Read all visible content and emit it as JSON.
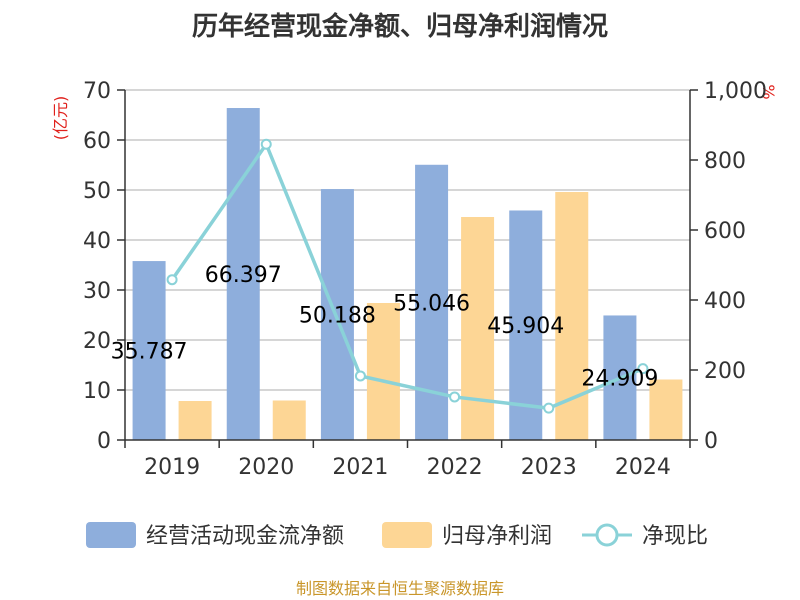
{
  "chart_data": {
    "type": "bar",
    "title": "历年经营现金净额、归母净利润情况",
    "categories": [
      "2019",
      "2020",
      "2021",
      "2022",
      "2023",
      "2024"
    ],
    "series": [
      {
        "name": "经营活动现金流净额",
        "type": "bar",
        "axis": "left",
        "color": "#8eaedc",
        "values": [
          35.787,
          66.397,
          50.188,
          55.046,
          45.904,
          24.909
        ],
        "labels": [
          "35.787",
          "66.397",
          "50.188",
          "55.046",
          "45.904",
          "24.909"
        ]
      },
      {
        "name": "归母净利润",
        "type": "bar",
        "axis": "left",
        "color": "#fdd695",
        "values": [
          7.8,
          7.9,
          27.4,
          44.6,
          49.6,
          12.1
        ]
      },
      {
        "name": "净现比",
        "type": "line",
        "axis": "right",
        "color": "#8ad2d8",
        "values": [
          458,
          845,
          183,
          123,
          91,
          204
        ]
      }
    ],
    "y_left": {
      "unit": "(亿元)",
      "ylim": [
        0,
        70
      ],
      "ticks": [
        0,
        10,
        20,
        30,
        40,
        50,
        60,
        70
      ],
      "tick_labels": [
        "0",
        "10",
        "20",
        "30",
        "40",
        "50",
        "60",
        "70"
      ]
    },
    "y_right": {
      "unit": "%",
      "ylim": [
        0,
        1000
      ],
      "ticks": [
        0,
        200,
        400,
        600,
        800,
        1000
      ],
      "tick_labels": [
        "0",
        "200",
        "400",
        "600",
        "800",
        "1,000"
      ]
    },
    "legend_position": "bottom",
    "grid": true
  },
  "footer": {
    "source": "制图数据来自恒生聚源数据库"
  }
}
